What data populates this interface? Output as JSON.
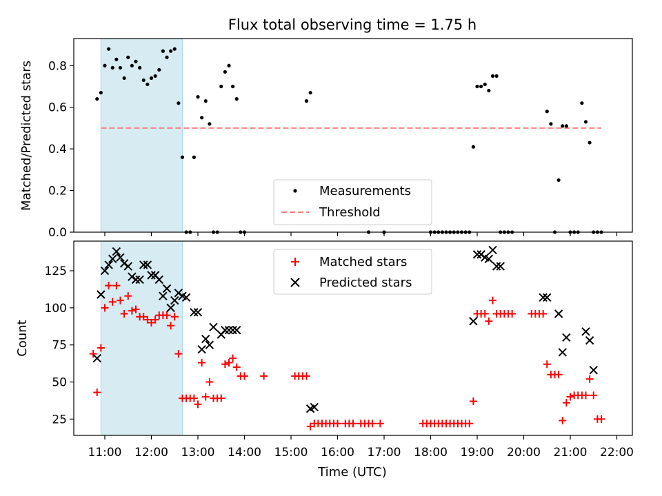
{
  "figure": {
    "title": "Flux total observing time = 1.75 h",
    "xlabel": "Time (UTC)",
    "x_ticks": [
      "11:00",
      "12:00",
      "13:00",
      "14:00",
      "15:00",
      "16:00",
      "17:00",
      "18:00",
      "19:00",
      "20:00",
      "21:00",
      "22:00"
    ],
    "shaded_interval": [
      "10:55",
      "12:40"
    ],
    "colors": {
      "shade": "#add8e6",
      "measurements": "#000000",
      "threshold": "#ff7f7f",
      "matched": "#ff0000",
      "predicted": "#000000"
    }
  },
  "chart_data": [
    {
      "type": "scatter",
      "ylabel": "Matched/Predicted stars",
      "xlim": [
        "10:20",
        "22:20"
      ],
      "ylim": [
        0,
        0.93
      ],
      "y_ticks": [
        "0.0",
        "0.2",
        "0.4",
        "0.6",
        "0.8"
      ],
      "grid": false,
      "legend_position": "bottom-center",
      "legend": [
        {
          "label": "Measurements",
          "marker": "dot"
        },
        {
          "label": "Threshold",
          "marker": "dashed-line"
        }
      ],
      "threshold": {
        "value": 0.5,
        "x_range": [
          "10:55",
          "21:40"
        ]
      },
      "series": [
        {
          "name": "Measurements",
          "x": [
            "10:50",
            "10:55",
            "11:00",
            "11:05",
            "11:10",
            "11:15",
            "11:20",
            "11:25",
            "11:30",
            "11:35",
            "11:40",
            "11:45",
            "11:50",
            "11:55",
            "12:00",
            "12:05",
            "12:10",
            "12:15",
            "12:20",
            "12:25",
            "12:30",
            "12:35",
            "12:40",
            "12:45",
            "12:50",
            "12:55",
            "13:00",
            "13:05",
            "13:10",
            "13:15",
            "13:20",
            "13:25",
            "13:30",
            "13:35",
            "13:40",
            "13:45",
            "13:50",
            "13:55",
            "14:00",
            "15:20",
            "15:25",
            "16:40",
            "17:00",
            "18:00",
            "18:05",
            "18:10",
            "18:15",
            "18:20",
            "18:25",
            "18:30",
            "18:35",
            "18:40",
            "18:45",
            "18:50",
            "18:55",
            "19:00",
            "19:05",
            "19:10",
            "19:15",
            "19:20",
            "19:25",
            "19:30",
            "19:35",
            "19:40",
            "19:45",
            "20:30",
            "20:35",
            "20:40",
            "20:45",
            "20:50",
            "20:55",
            "21:00",
            "21:05",
            "21:10",
            "21:15",
            "21:20",
            "21:25",
            "21:30",
            "21:35",
            "21:40"
          ],
          "y": [
            0.64,
            0.67,
            0.8,
            0.88,
            0.79,
            0.83,
            0.79,
            0.74,
            0.84,
            0.8,
            0.82,
            0.79,
            0.73,
            0.71,
            0.74,
            0.75,
            0.78,
            0.87,
            0.84,
            0.87,
            0.88,
            0.62,
            0.36,
            0.0,
            0.0,
            0.36,
            0.65,
            0.55,
            0.63,
            0.52,
            0.0,
            0.0,
            0.7,
            0.77,
            0.8,
            0.7,
            0.64,
            0.0,
            0.0,
            0.63,
            0.67,
            0.0,
            0.0,
            0.0,
            0.0,
            0.0,
            0.0,
            0.0,
            0.0,
            0.0,
            0.0,
            0.0,
            0.0,
            0.0,
            0.41,
            0.7,
            0.7,
            0.71,
            0.68,
            0.75,
            0.75,
            0.0,
            0.0,
            0.0,
            0.0,
            0.58,
            0.52,
            0.0,
            0.25,
            0.51,
            0.51,
            0.0,
            0.0,
            0.0,
            0.62,
            0.53,
            0.43,
            0.0,
            0.0,
            0.0
          ]
        }
      ]
    },
    {
      "type": "scatter",
      "ylabel": "Count",
      "xlim": [
        "10:20",
        "22:20"
      ],
      "ylim": [
        14,
        145
      ],
      "y_ticks": [
        "25",
        "50",
        "75",
        "100",
        "125"
      ],
      "grid": false,
      "legend_position": "top-center",
      "legend": [
        {
          "label": "Matched stars",
          "marker": "plus"
        },
        {
          "label": "Predicted stars",
          "marker": "x"
        }
      ],
      "series": [
        {
          "name": "Matched stars",
          "x": [
            "10:45",
            "10:50",
            "10:55",
            "11:00",
            "11:05",
            "11:10",
            "11:15",
            "11:20",
            "11:25",
            "11:30",
            "11:35",
            "11:40",
            "11:45",
            "11:50",
            "11:55",
            "12:00",
            "12:05",
            "12:10",
            "12:15",
            "12:20",
            "12:25",
            "12:30",
            "12:35",
            "12:40",
            "12:45",
            "12:50",
            "12:55",
            "13:00",
            "13:05",
            "13:10",
            "13:15",
            "13:20",
            "13:25",
            "13:30",
            "13:35",
            "13:40",
            "13:45",
            "13:50",
            "13:55",
            "14:00",
            "14:25",
            "15:05",
            "15:10",
            "15:15",
            "15:20",
            "15:25",
            "15:30",
            "15:35",
            "15:40",
            "15:45",
            "15:50",
            "15:55",
            "16:00",
            "16:10",
            "16:15",
            "16:20",
            "16:30",
            "16:35",
            "16:40",
            "16:45",
            "16:55",
            "17:50",
            "17:55",
            "18:00",
            "18:05",
            "18:10",
            "18:15",
            "18:20",
            "18:25",
            "18:30",
            "18:35",
            "18:40",
            "18:45",
            "18:50",
            "18:55",
            "19:00",
            "19:05",
            "19:10",
            "19:15",
            "19:20",
            "19:25",
            "19:30",
            "19:35",
            "19:40",
            "19:45",
            "20:10",
            "20:15",
            "20:20",
            "20:25",
            "20:30",
            "20:35",
            "20:40",
            "20:45",
            "20:50",
            "20:55",
            "21:00",
            "21:05",
            "21:10",
            "21:15",
            "21:20",
            "21:25",
            "21:30",
            "21:35",
            "21:40"
          ],
          "y": [
            69,
            43,
            73,
            100,
            115,
            104,
            115,
            105,
            96,
            108,
            98,
            99,
            94,
            94,
            92,
            90,
            92,
            95,
            95,
            95,
            88,
            94,
            69,
            39,
            39,
            39,
            39,
            35,
            63,
            40,
            50,
            39,
            39,
            39,
            62,
            63,
            66,
            60,
            54,
            54,
            54,
            54,
            54,
            54,
            54,
            20,
            22,
            22,
            22,
            22,
            22,
            22,
            22,
            22,
            22,
            22,
            22,
            22,
            22,
            22,
            22,
            22,
            22,
            22,
            22,
            22,
            22,
            22,
            22,
            22,
            22,
            22,
            22,
            22,
            37,
            96,
            96,
            96,
            91,
            105,
            96,
            96,
            96,
            96,
            96,
            96,
            96,
            96,
            96,
            62,
            55,
            55,
            55,
            24,
            36,
            40,
            41,
            41,
            41,
            41,
            52,
            41,
            25,
            25
          ]
        },
        {
          "name": "Predicted stars",
          "x": [
            "10:50",
            "10:55",
            "11:00",
            "11:05",
            "11:10",
            "11:15",
            "11:20",
            "11:25",
            "11:30",
            "11:35",
            "11:40",
            "11:45",
            "11:50",
            "11:55",
            "12:00",
            "12:05",
            "12:10",
            "12:15",
            "12:20",
            "12:25",
            "12:30",
            "12:35",
            "12:40",
            "12:45",
            "12:55",
            "13:00",
            "13:05",
            "13:10",
            "13:15",
            "13:20",
            "13:30",
            "13:35",
            "13:40",
            "13:45",
            "13:50",
            "15:25",
            "15:30",
            "18:55",
            "19:00",
            "19:05",
            "19:10",
            "19:15",
            "19:20",
            "19:25",
            "19:30",
            "20:25",
            "20:30",
            "20:45",
            "20:50",
            "20:55",
            "21:20",
            "21:25",
            "21:30"
          ],
          "y": [
            66,
            109,
            125,
            129,
            133,
            138,
            134,
            130,
            128,
            121,
            119,
            119,
            129,
            129,
            122,
            122,
            119,
            108,
            113,
            100,
            105,
            110,
            108,
            107,
            97,
            97,
            72,
            79,
            75,
            87,
            82,
            85,
            85,
            85,
            85,
            32,
            33,
            91,
            136,
            136,
            134,
            133,
            139,
            128,
            128,
            107,
            107,
            96,
            70,
            80,
            84,
            78,
            58
          ]
        }
      ]
    }
  ]
}
